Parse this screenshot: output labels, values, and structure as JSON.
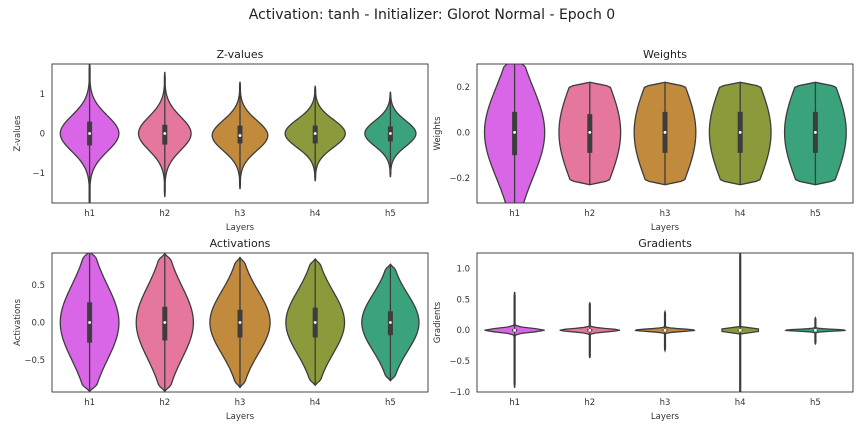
{
  "suptitle": "Activation: tanh - Initializer: Glorot Normal - Epoch 0",
  "palette": [
    "#d966e6",
    "#e5779f",
    "#c28a3d",
    "#8c9a3c",
    "#3aa37c"
  ],
  "chart_data": [
    {
      "type": "violin",
      "title": "Z-values",
      "xlabel": "Layers",
      "ylabel": "Z-values",
      "categories": [
        "h1",
        "h2",
        "h3",
        "h4",
        "h5"
      ],
      "ylim": [
        -1.75,
        1.75
      ],
      "yticks": [
        -1,
        0,
        1
      ],
      "ytick_labels": [
        "−1",
        "0",
        "1"
      ],
      "violins": [
        {
          "min": -1.85,
          "max": 1.8,
          "q1": -0.3,
          "median": 0.0,
          "q3": 0.3,
          "width": 0.78,
          "sigma": 0.45
        },
        {
          "min": -1.6,
          "max": 1.55,
          "q1": -0.28,
          "median": 0.0,
          "q3": 0.22,
          "width": 0.7,
          "sigma": 0.42
        },
        {
          "min": -1.4,
          "max": 1.3,
          "q1": -0.25,
          "median": -0.05,
          "q3": 0.2,
          "width": 0.74,
          "sigma": 0.38
        },
        {
          "min": -1.2,
          "max": 1.2,
          "q1": -0.25,
          "median": 0.0,
          "q3": 0.2,
          "width": 0.8,
          "sigma": 0.35
        },
        {
          "min": -1.1,
          "max": 1.05,
          "q1": -0.2,
          "median": 0.0,
          "q3": 0.18,
          "width": 0.68,
          "sigma": 0.32
        }
      ]
    },
    {
      "type": "violin",
      "title": "Weights",
      "xlabel": "Layers",
      "ylabel": "Weights",
      "categories": [
        "h1",
        "h2",
        "h3",
        "h4",
        "h5"
      ],
      "ylim": [
        -0.31,
        0.3
      ],
      "yticks": [
        -0.2,
        0.0,
        0.2
      ],
      "ytick_labels": [
        "−0.2",
        "0.0",
        "0.2"
      ],
      "violins": [
        {
          "min": -0.35,
          "max": 0.32,
          "q1": -0.1,
          "median": 0.0,
          "q3": 0.09,
          "width": 0.8,
          "sigma": 0.2
        },
        {
          "min": -0.23,
          "max": 0.22,
          "q1": -0.09,
          "median": 0.0,
          "q3": 0.08,
          "width": 0.82,
          "sigma": 0.22
        },
        {
          "min": -0.23,
          "max": 0.22,
          "q1": -0.09,
          "median": 0.0,
          "q3": 0.09,
          "width": 0.82,
          "sigma": 0.22
        },
        {
          "min": -0.23,
          "max": 0.22,
          "q1": -0.09,
          "median": 0.0,
          "q3": 0.09,
          "width": 0.82,
          "sigma": 0.22
        },
        {
          "min": -0.23,
          "max": 0.22,
          "q1": -0.09,
          "median": 0.0,
          "q3": 0.09,
          "width": 0.82,
          "sigma": 0.22
        }
      ]
    },
    {
      "type": "violin",
      "title": "Activations",
      "xlabel": "Layers",
      "ylabel": "Activations",
      "categories": [
        "h1",
        "h2",
        "h3",
        "h4",
        "h5"
      ],
      "ylim": [
        -0.93,
        0.93
      ],
      "yticks": [
        -0.5,
        0.0,
        0.5
      ],
      "ytick_labels": [
        "−0.5",
        "0.0",
        "0.5"
      ],
      "violins": [
        {
          "min": -0.92,
          "max": 0.95,
          "q1": -0.27,
          "median": 0.0,
          "q3": 0.27,
          "width": 0.78,
          "sigma": 0.5
        },
        {
          "min": -0.92,
          "max": 0.92,
          "q1": -0.24,
          "median": 0.0,
          "q3": 0.21,
          "width": 0.76,
          "sigma": 0.48
        },
        {
          "min": -0.87,
          "max": 0.87,
          "q1": -0.2,
          "median": 0.0,
          "q3": 0.17,
          "width": 0.8,
          "sigma": 0.42
        },
        {
          "min": -0.84,
          "max": 0.85,
          "q1": -0.2,
          "median": 0.0,
          "q3": 0.2,
          "width": 0.78,
          "sigma": 0.42
        },
        {
          "min": -0.78,
          "max": 0.78,
          "q1": -0.17,
          "median": 0.0,
          "q3": 0.15,
          "width": 0.76,
          "sigma": 0.38
        }
      ]
    },
    {
      "type": "violin",
      "title": "Gradients",
      "xlabel": "Layers",
      "ylabel": "Gradients",
      "categories": [
        "h1",
        "h2",
        "h3",
        "h4",
        "h5"
      ],
      "ylim": [
        -1.0,
        1.25
      ],
      "yticks": [
        -1.0,
        -0.5,
        0.0,
        0.5,
        1.0
      ],
      "ytick_labels": [
        "−1.0",
        "−0.5",
        "0.0",
        "0.5",
        "1.0"
      ],
      "violins": [
        {
          "min": -0.93,
          "max": 0.62,
          "q1": -0.02,
          "median": 0.0,
          "q3": 0.02,
          "width": 0.8,
          "sigma": 0.03
        },
        {
          "min": -0.45,
          "max": 0.45,
          "q1": -0.02,
          "median": 0.0,
          "q3": 0.02,
          "width": 0.8,
          "sigma": 0.025
        },
        {
          "min": -0.33,
          "max": 0.3,
          "q1": -0.015,
          "median": 0.0,
          "q3": 0.015,
          "width": 0.8,
          "sigma": 0.02
        },
        {
          "min": -1.1,
          "max": 1.3,
          "q1": -0.01,
          "median": 0.0,
          "q3": 0.01,
          "width": 0.8,
          "sigma": 0.02
        },
        {
          "min": -0.22,
          "max": 0.2,
          "q1": -0.01,
          "median": 0.0,
          "q3": 0.01,
          "width": 0.8,
          "sigma": 0.015
        }
      ]
    }
  ]
}
